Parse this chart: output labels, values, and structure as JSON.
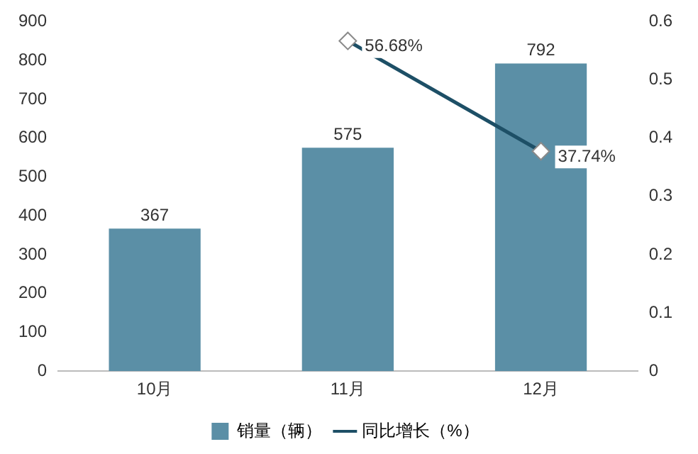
{
  "chart_data": {
    "type": "bar",
    "categories": [
      "10月",
      "11月",
      "12月"
    ],
    "series": [
      {
        "name": "销量（辆）",
        "color": "#5b8fa6",
        "values": [
          367,
          575,
          792
        ],
        "value_labels": [
          "367",
          "575",
          "792"
        ]
      },
      {
        "name": "同比增长（%）",
        "type": "line",
        "axis": "y2",
        "color": "#1d4f66",
        "values": [
          null,
          0.5668,
          0.3774
        ],
        "value_labels": [
          null,
          "56.68%",
          "37.74%"
        ],
        "marker": "diamond"
      }
    ],
    "ylim": [
      0,
      900
    ],
    "yticks": [
      0,
      100,
      200,
      300,
      400,
      500,
      600,
      700,
      800,
      900
    ],
    "y2lim": [
      0,
      0.6
    ],
    "y2ticks": [
      0,
      0.1,
      0.2,
      0.3,
      0.4,
      0.5,
      0.6
    ],
    "legend": "bottom"
  }
}
